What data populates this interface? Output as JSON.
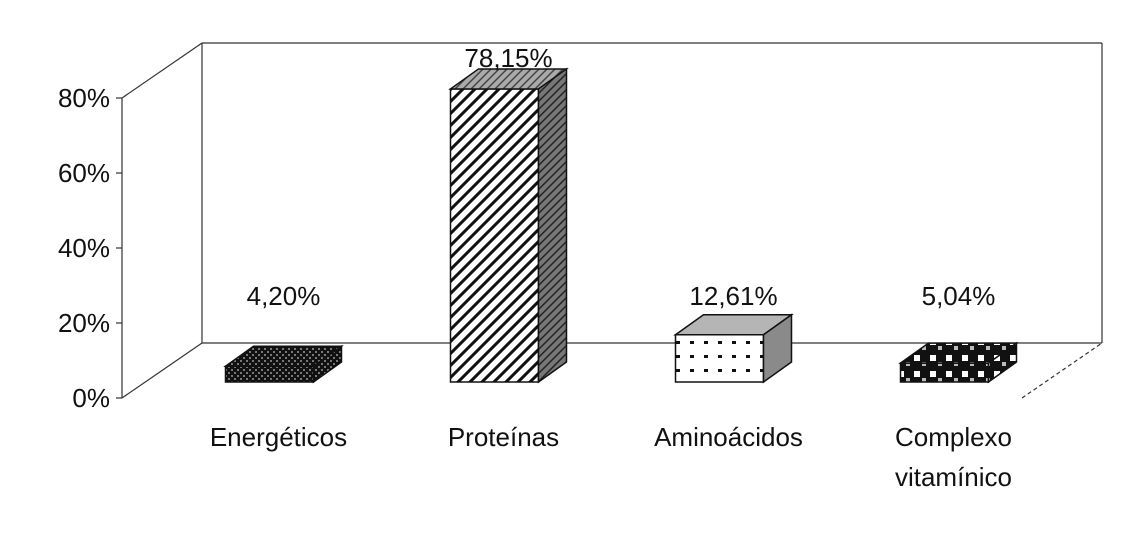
{
  "chart_data": {
    "type": "bar",
    "categories": [
      "Energéticos",
      "Proteínas",
      "Aminoácidos",
      "Complexo vitamínico"
    ],
    "category_lines": [
      [
        "Energéticos"
      ],
      [
        "Proteínas"
      ],
      [
        "Aminoácidos"
      ],
      [
        "Complexo",
        "vitamínico"
      ]
    ],
    "values": [
      4.2,
      78.15,
      12.61,
      5.04
    ],
    "data_labels": [
      "4,20%",
      "78,15%",
      "12,61%",
      "5,04%"
    ],
    "yticks": [
      "0%",
      "20%",
      "40%",
      "60%",
      "80%"
    ],
    "ylim": [
      0,
      80
    ],
    "grid": false,
    "legend": "none",
    "style": "3d-bar"
  }
}
